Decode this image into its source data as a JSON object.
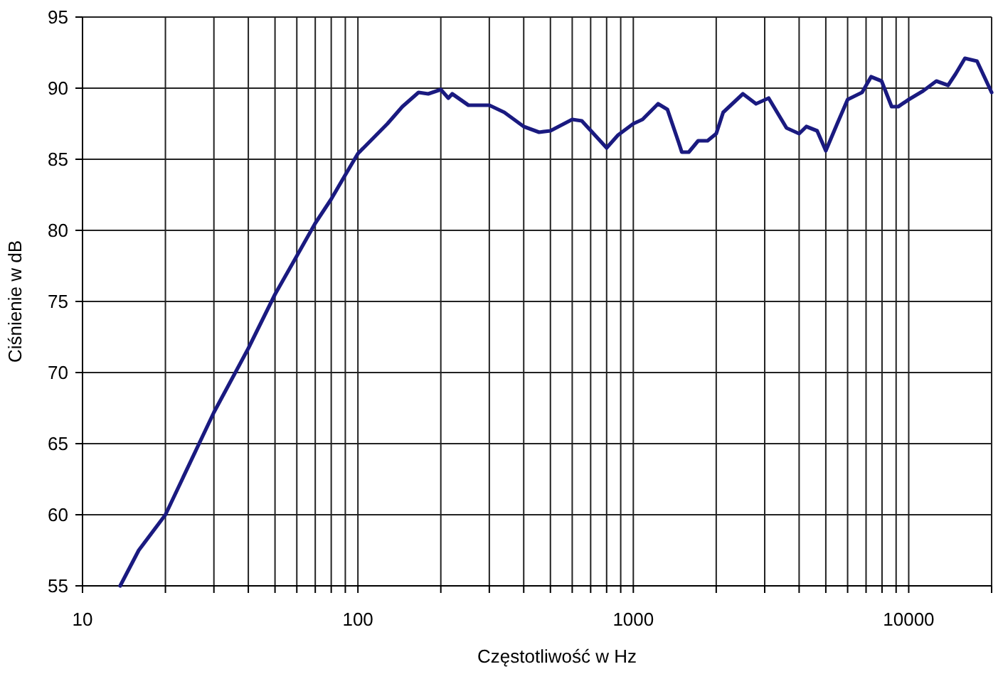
{
  "chart_data": {
    "type": "line",
    "xlabel": "Częstotliwość w Hz",
    "ylabel": "Ciśnienie w dB",
    "log": "x",
    "grid": true,
    "marker": "none",
    "line_style": "solid",
    "xlim": [
      10,
      20000
    ],
    "ylim": [
      55,
      95
    ],
    "yticks": [
      55,
      60,
      65,
      70,
      75,
      80,
      85,
      90,
      95
    ],
    "xticks": [
      10,
      {
        "value": 20,
        "label": null
      },
      {
        "value": 30,
        "label": null
      },
      {
        "value": 40,
        "label": null
      },
      {
        "value": 50,
        "label": null
      },
      {
        "value": 60,
        "label": null
      },
      {
        "value": 70,
        "label": null
      },
      {
        "value": 80,
        "label": null
      },
      {
        "value": 90,
        "label": null
      },
      100,
      {
        "value": 200,
        "label": null
      },
      {
        "value": 300,
        "label": null
      },
      {
        "value": 400,
        "label": null
      },
      {
        "value": 500,
        "label": null
      },
      {
        "value": 600,
        "label": null
      },
      {
        "value": 700,
        "label": null
      },
      {
        "value": 800,
        "label": null
      },
      {
        "value": 900,
        "label": null
      },
      1000,
      {
        "value": 2000,
        "label": null
      },
      {
        "value": 3000,
        "label": null
      },
      {
        "value": 4000,
        "label": null
      },
      {
        "value": 5000,
        "label": null
      },
      {
        "value": 6000,
        "label": null
      },
      {
        "value": 7000,
        "label": null
      },
      {
        "value": 8000,
        "label": null
      },
      {
        "value": 9000,
        "label": null
      },
      10000,
      {
        "value": 20000,
        "label": null
      }
    ],
    "series": [
      {
        "color": "#1a1a80",
        "x": [
          13.7,
          16,
          20,
          30,
          40,
          50,
          60,
          70,
          80,
          90,
          100,
          128,
          145,
          166,
          180,
          200,
          213,
          220,
          252,
          300,
          340,
          400,
          455,
          500,
          600,
          650,
          800,
          880,
          1000,
          1080,
          1230,
          1330,
          1460,
          1500,
          1590,
          1720,
          1860,
          2000,
          2120,
          2500,
          2790,
          3100,
          3600,
          4000,
          4250,
          4650,
          5000,
          5500,
          6000,
          6770,
          7300,
          7970,
          8670,
          9160,
          10000,
          11270,
          12600,
          13900,
          14800,
          16000,
          17700,
          20000
        ],
        "values": [
          55,
          57.5,
          60,
          67.2,
          71.7,
          75.5,
          78.2,
          80.5,
          82.2,
          83.9,
          85.4,
          87.5,
          88.7,
          89.7,
          89.6,
          89.9,
          89.3,
          89.6,
          88.8,
          88.8,
          88.3,
          87.3,
          86.9,
          87,
          87.8,
          87.7,
          85.8,
          86.7,
          87.5,
          87.8,
          88.9,
          88.5,
          86.2,
          85.5,
          85.5,
          86.3,
          86.3,
          86.8,
          88.3,
          89.6,
          88.9,
          89.3,
          87.2,
          86.8,
          87.3,
          87,
          85.6,
          87.5,
          89.2,
          89.7,
          90.8,
          90.5,
          88.7,
          88.7,
          89.2,
          89.8,
          90.5,
          90.2,
          91,
          92.1,
          91.9,
          89.7
        ]
      }
    ]
  }
}
